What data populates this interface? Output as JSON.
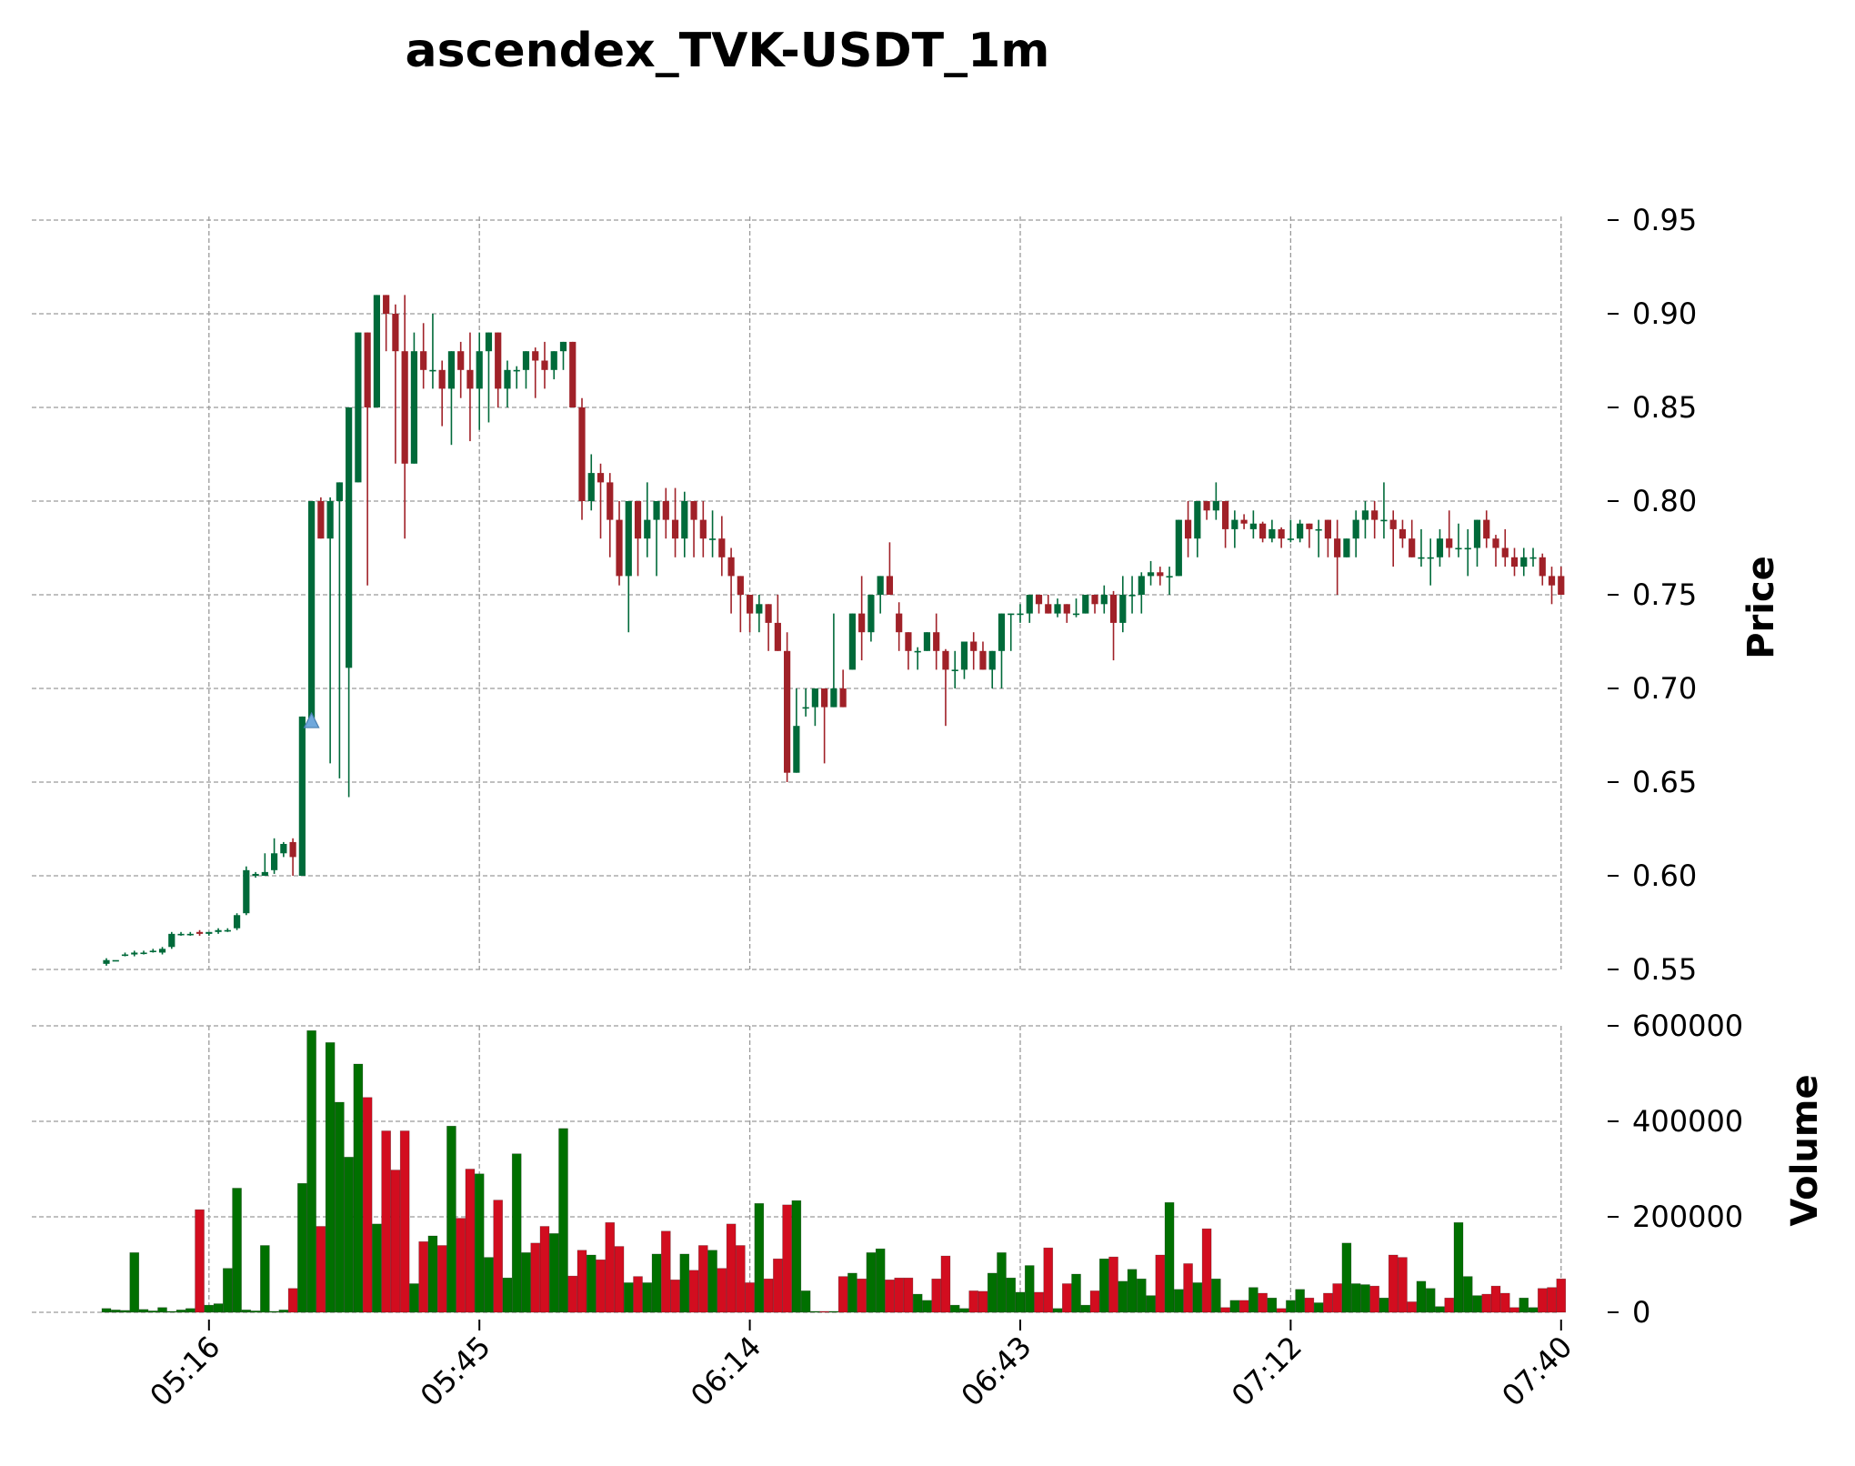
{
  "chart_data": {
    "type": "candlestick",
    "title": "ascendex_TVK-USDT_1m",
    "ylabel_price": "Price",
    "ylabel_volume": "Volume",
    "price_ylim": [
      0.55,
      0.95
    ],
    "price_ticks": [
      "0.55",
      "0.60",
      "0.65",
      "0.70",
      "0.75",
      "0.80",
      "0.85",
      "0.90",
      "0.95"
    ],
    "volume_ylim": [
      0,
      600000
    ],
    "volume_ticks": [
      "0",
      "200000",
      "400000",
      "600000"
    ],
    "x_ticks": [
      {
        "label": "05:16",
        "minute": 11
      },
      {
        "label": "05:45",
        "minute": 40
      },
      {
        "label": "06:14",
        "minute": 69
      },
      {
        "label": "06:43",
        "minute": 98
      },
      {
        "label": "07:12",
        "minute": 127
      },
      {
        "label": "07:40",
        "minute": 156
      }
    ],
    "grid": true,
    "up_color": "#006a3a",
    "down_color": "#a02128",
    "volume_up_color": "#007000",
    "volume_down_color": "#d20d1f",
    "marker": {
      "type": "triangle-up",
      "minute": 22,
      "price": 0.682,
      "color": "#6fa8dc"
    },
    "candles": [
      [
        0.553,
        0.556,
        0.552,
        0.555,
        8000
      ],
      [
        0.555,
        0.555,
        0.555,
        0.555,
        5000
      ],
      [
        0.558,
        0.559,
        0.557,
        0.558,
        4000
      ],
      [
        0.558,
        0.56,
        0.557,
        0.559,
        125000
      ],
      [
        0.559,
        0.56,
        0.558,
        0.559,
        6000
      ],
      [
        0.56,
        0.561,
        0.559,
        0.56,
        3000
      ],
      [
        0.559,
        0.562,
        0.558,
        0.561,
        10000
      ],
      [
        0.562,
        0.57,
        0.561,
        0.569,
        2000
      ],
      [
        0.569,
        0.57,
        0.568,
        0.569,
        5000
      ],
      [
        0.569,
        0.57,
        0.568,
        0.569,
        8000
      ],
      [
        0.57,
        0.571,
        0.568,
        0.569,
        215000
      ],
      [
        0.569,
        0.57,
        0.568,
        0.57,
        15000
      ],
      [
        0.57,
        0.572,
        0.569,
        0.571,
        18000
      ],
      [
        0.571,
        0.572,
        0.57,
        0.571,
        92000
      ],
      [
        0.572,
        0.58,
        0.571,
        0.579,
        260000
      ],
      [
        0.58,
        0.605,
        0.579,
        0.603,
        5000
      ],
      [
        0.6,
        0.602,
        0.599,
        0.601,
        3000
      ],
      [
        0.6,
        0.612,
        0.6,
        0.602,
        140000
      ],
      [
        0.603,
        0.62,
        0.601,
        0.612,
        2000
      ],
      [
        0.612,
        0.618,
        0.61,
        0.617,
        5000
      ],
      [
        0.618,
        0.62,
        0.6,
        0.61,
        50000
      ],
      [
        0.6,
        0.685,
        0.6,
        0.685,
        270000
      ],
      [
        0.682,
        0.8,
        0.682,
        0.8,
        590000
      ],
      [
        0.8,
        0.802,
        0.78,
        0.78,
        180000
      ],
      [
        0.78,
        0.802,
        0.66,
        0.8,
        565000
      ],
      [
        0.8,
        0.81,
        0.652,
        0.81,
        440000
      ],
      [
        0.711,
        0.85,
        0.642,
        0.85,
        325000
      ],
      [
        0.81,
        0.89,
        0.81,
        0.89,
        520000
      ],
      [
        0.89,
        0.89,
        0.755,
        0.85,
        450000
      ],
      [
        0.85,
        0.91,
        0.85,
        0.91,
        185000
      ],
      [
        0.91,
        0.91,
        0.88,
        0.9,
        380000
      ],
      [
        0.9,
        0.905,
        0.82,
        0.88,
        298000
      ],
      [
        0.88,
        0.91,
        0.78,
        0.82,
        380000
      ],
      [
        0.82,
        0.89,
        0.82,
        0.88,
        60000
      ],
      [
        0.88,
        0.895,
        0.86,
        0.87,
        148000
      ],
      [
        0.87,
        0.9,
        0.86,
        0.87,
        160000
      ],
      [
        0.87,
        0.875,
        0.84,
        0.86,
        140000
      ],
      [
        0.86,
        0.88,
        0.83,
        0.88,
        390000
      ],
      [
        0.88,
        0.885,
        0.855,
        0.87,
        197000
      ],
      [
        0.87,
        0.89,
        0.832,
        0.86,
        300000
      ],
      [
        0.86,
        0.89,
        0.838,
        0.88,
        290000
      ],
      [
        0.88,
        0.89,
        0.842,
        0.89,
        115000
      ],
      [
        0.89,
        0.89,
        0.85,
        0.86,
        235000
      ],
      [
        0.86,
        0.875,
        0.85,
        0.87,
        72000
      ],
      [
        0.87,
        0.872,
        0.86,
        0.87,
        332000
      ],
      [
        0.87,
        0.88,
        0.86,
        0.88,
        125000
      ],
      [
        0.88,
        0.882,
        0.855,
        0.875,
        145000
      ],
      [
        0.875,
        0.885,
        0.86,
        0.87,
        180000
      ],
      [
        0.87,
        0.88,
        0.865,
        0.88,
        165000
      ],
      [
        0.88,
        0.885,
        0.87,
        0.885,
        385000
      ],
      [
        0.885,
        0.885,
        0.85,
        0.85,
        76000
      ],
      [
        0.85,
        0.855,
        0.79,
        0.8,
        130000
      ],
      [
        0.8,
        0.825,
        0.795,
        0.815,
        120000
      ],
      [
        0.815,
        0.82,
        0.78,
        0.81,
        110000
      ],
      [
        0.81,
        0.815,
        0.77,
        0.79,
        188000
      ],
      [
        0.79,
        0.8,
        0.755,
        0.76,
        138000
      ],
      [
        0.76,
        0.8,
        0.73,
        0.8,
        62000
      ],
      [
        0.8,
        0.8,
        0.76,
        0.78,
        75000
      ],
      [
        0.78,
        0.81,
        0.77,
        0.79,
        62000
      ],
      [
        0.79,
        0.8,
        0.76,
        0.8,
        122000
      ],
      [
        0.8,
        0.807,
        0.78,
        0.79,
        170000
      ],
      [
        0.79,
        0.807,
        0.77,
        0.78,
        68000
      ],
      [
        0.78,
        0.805,
        0.77,
        0.8,
        122000
      ],
      [
        0.8,
        0.8,
        0.77,
        0.79,
        88000
      ],
      [
        0.79,
        0.8,
        0.77,
        0.78,
        140000
      ],
      [
        0.78,
        0.795,
        0.77,
        0.78,
        130000
      ],
      [
        0.78,
        0.792,
        0.76,
        0.77,
        92000
      ],
      [
        0.77,
        0.775,
        0.74,
        0.76,
        185000
      ],
      [
        0.76,
        0.76,
        0.73,
        0.75,
        140000
      ],
      [
        0.75,
        0.75,
        0.73,
        0.74,
        62000
      ],
      [
        0.74,
        0.75,
        0.73,
        0.745,
        228000
      ],
      [
        0.745,
        0.745,
        0.72,
        0.735,
        70000
      ],
      [
        0.735,
        0.75,
        0.72,
        0.72,
        112000
      ],
      [
        0.72,
        0.73,
        0.65,
        0.655,
        225000
      ],
      [
        0.655,
        0.7,
        0.655,
        0.68,
        234000
      ],
      [
        0.69,
        0.7,
        0.685,
        0.69,
        45000
      ],
      [
        0.69,
        0.7,
        0.68,
        0.7,
        2000
      ],
      [
        0.7,
        0.7,
        0.66,
        0.69,
        2000
      ],
      [
        0.69,
        0.74,
        0.69,
        0.7,
        2000
      ],
      [
        0.7,
        0.71,
        0.69,
        0.69,
        75000
      ],
      [
        0.71,
        0.74,
        0.71,
        0.74,
        82000
      ],
      [
        0.74,
        0.76,
        0.715,
        0.73,
        70000
      ],
      [
        0.73,
        0.75,
        0.725,
        0.75,
        125000
      ],
      [
        0.75,
        0.76,
        0.74,
        0.76,
        133000
      ],
      [
        0.76,
        0.778,
        0.75,
        0.75,
        68000
      ],
      [
        0.74,
        0.746,
        0.72,
        0.73,
        72000
      ],
      [
        0.73,
        0.73,
        0.71,
        0.72,
        72000
      ],
      [
        0.72,
        0.722,
        0.71,
        0.72,
        38000
      ],
      [
        0.72,
        0.73,
        0.72,
        0.73,
        25000
      ],
      [
        0.73,
        0.74,
        0.71,
        0.72,
        70000
      ],
      [
        0.72,
        0.721,
        0.68,
        0.71,
        118000
      ],
      [
        0.71,
        0.72,
        0.7,
        0.71,
        15000
      ],
      [
        0.71,
        0.725,
        0.705,
        0.725,
        8000
      ],
      [
        0.725,
        0.73,
        0.71,
        0.72,
        45000
      ],
      [
        0.72,
        0.725,
        0.71,
        0.71,
        44000
      ],
      [
        0.71,
        0.72,
        0.7,
        0.72,
        82000
      ],
      [
        0.72,
        0.74,
        0.7,
        0.74,
        125000
      ],
      [
        0.74,
        0.74,
        0.72,
        0.74,
        72000
      ],
      [
        0.74,
        0.745,
        0.735,
        0.74,
        42000
      ],
      [
        0.74,
        0.75,
        0.735,
        0.75,
        98000
      ],
      [
        0.75,
        0.75,
        0.74,
        0.745,
        42000
      ],
      [
        0.745,
        0.75,
        0.74,
        0.74,
        135000
      ],
      [
        0.74,
        0.748,
        0.738,
        0.745,
        8000
      ],
      [
        0.745,
        0.745,
        0.735,
        0.74,
        60000
      ],
      [
        0.74,
        0.748,
        0.738,
        0.74,
        80000
      ],
      [
        0.74,
        0.75,
        0.74,
        0.75,
        15000
      ],
      [
        0.75,
        0.75,
        0.74,
        0.745,
        45000
      ],
      [
        0.745,
        0.755,
        0.74,
        0.75,
        112000
      ],
      [
        0.75,
        0.752,
        0.715,
        0.735,
        116000
      ],
      [
        0.735,
        0.76,
        0.73,
        0.75,
        65000
      ],
      [
        0.75,
        0.76,
        0.74,
        0.75,
        90000
      ],
      [
        0.75,
        0.762,
        0.74,
        0.76,
        70000
      ],
      [
        0.76,
        0.768,
        0.755,
        0.762,
        35000
      ],
      [
        0.762,
        0.765,
        0.755,
        0.76,
        120000
      ],
      [
        0.76,
        0.765,
        0.75,
        0.76,
        230000
      ],
      [
        0.76,
        0.79,
        0.76,
        0.79,
        48000
      ],
      [
        0.79,
        0.8,
        0.77,
        0.78,
        102000
      ],
      [
        0.78,
        0.8,
        0.77,
        0.8,
        62000
      ],
      [
        0.8,
        0.8,
        0.79,
        0.795,
        175000
      ],
      [
        0.795,
        0.81,
        0.79,
        0.8,
        70000
      ],
      [
        0.8,
        0.8,
        0.775,
        0.785,
        10000
      ],
      [
        0.785,
        0.795,
        0.775,
        0.79,
        25000
      ],
      [
        0.79,
        0.793,
        0.785,
        0.788,
        25000
      ],
      [
        0.785,
        0.795,
        0.78,
        0.788,
        52000
      ],
      [
        0.788,
        0.789,
        0.778,
        0.78,
        40000
      ],
      [
        0.78,
        0.79,
        0.778,
        0.785,
        30000
      ],
      [
        0.785,
        0.786,
        0.775,
        0.78,
        8000
      ],
      [
        0.78,
        0.79,
        0.778,
        0.78,
        25000
      ],
      [
        0.78,
        0.79,
        0.778,
        0.788,
        48000
      ],
      [
        0.788,
        0.788,
        0.775,
        0.785,
        30000
      ],
      [
        0.785,
        0.79,
        0.77,
        0.785,
        20000
      ],
      [
        0.79,
        0.79,
        0.77,
        0.78,
        40000
      ],
      [
        0.78,
        0.79,
        0.75,
        0.77,
        60000
      ],
      [
        0.77,
        0.78,
        0.77,
        0.78,
        145000
      ],
      [
        0.78,
        0.795,
        0.77,
        0.79,
        60000
      ],
      [
        0.79,
        0.8,
        0.78,
        0.795,
        58000
      ],
      [
        0.795,
        0.8,
        0.78,
        0.79,
        55000
      ],
      [
        0.79,
        0.81,
        0.78,
        0.79,
        30000
      ],
      [
        0.79,
        0.795,
        0.765,
        0.785,
        120000
      ],
      [
        0.785,
        0.79,
        0.775,
        0.78,
        115000
      ],
      [
        0.78,
        0.79,
        0.77,
        0.77,
        22000
      ],
      [
        0.77,
        0.785,
        0.765,
        0.77,
        65000
      ],
      [
        0.77,
        0.78,
        0.755,
        0.77,
        50000
      ],
      [
        0.77,
        0.785,
        0.765,
        0.78,
        12000
      ],
      [
        0.78,
        0.795,
        0.77,
        0.775,
        30000
      ],
      [
        0.775,
        0.788,
        0.77,
        0.775,
        188000
      ],
      [
        0.775,
        0.785,
        0.76,
        0.775,
        75000
      ],
      [
        0.775,
        0.79,
        0.765,
        0.79,
        35000
      ],
      [
        0.79,
        0.795,
        0.775,
        0.78,
        38000
      ],
      [
        0.78,
        0.782,
        0.765,
        0.775,
        55000
      ],
      [
        0.775,
        0.785,
        0.765,
        0.77,
        40000
      ],
      [
        0.77,
        0.775,
        0.76,
        0.765,
        10000
      ],
      [
        0.765,
        0.775,
        0.76,
        0.77,
        30000
      ],
      [
        0.77,
        0.775,
        0.765,
        0.77,
        10000
      ],
      [
        0.77,
        0.772,
        0.755,
        0.76,
        50000
      ],
      [
        0.76,
        0.765,
        0.745,
        0.755,
        52000
      ],
      [
        0.76,
        0.765,
        0.75,
        0.75,
        70000
      ]
    ]
  }
}
